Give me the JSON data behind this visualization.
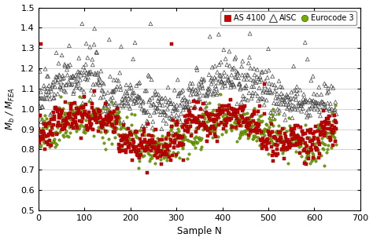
{
  "xlabel": "Sample N",
  "ylabel": "M_b / M_FEA",
  "xlim": [
    0,
    700
  ],
  "ylim": [
    0.5,
    1.5
  ],
  "xticks": [
    0,
    100,
    200,
    300,
    400,
    500,
    600,
    700
  ],
  "yticks": [
    0.5,
    0.6,
    0.7,
    0.8,
    0.9,
    1.0,
    1.1,
    1.2,
    1.3,
    1.4,
    1.5
  ],
  "n_samples": 648,
  "seed": 42,
  "as4100_color": "#cc0000",
  "aisc_edgecolor": "#444444",
  "eurocode_color": "#77aa00",
  "eurocode_edge": "#446600",
  "background_color": "#ffffff",
  "grid_color": "#cccccc",
  "as4100_marker_size": 7,
  "aisc_marker_size": 9,
  "eurocode_marker_size": 7
}
